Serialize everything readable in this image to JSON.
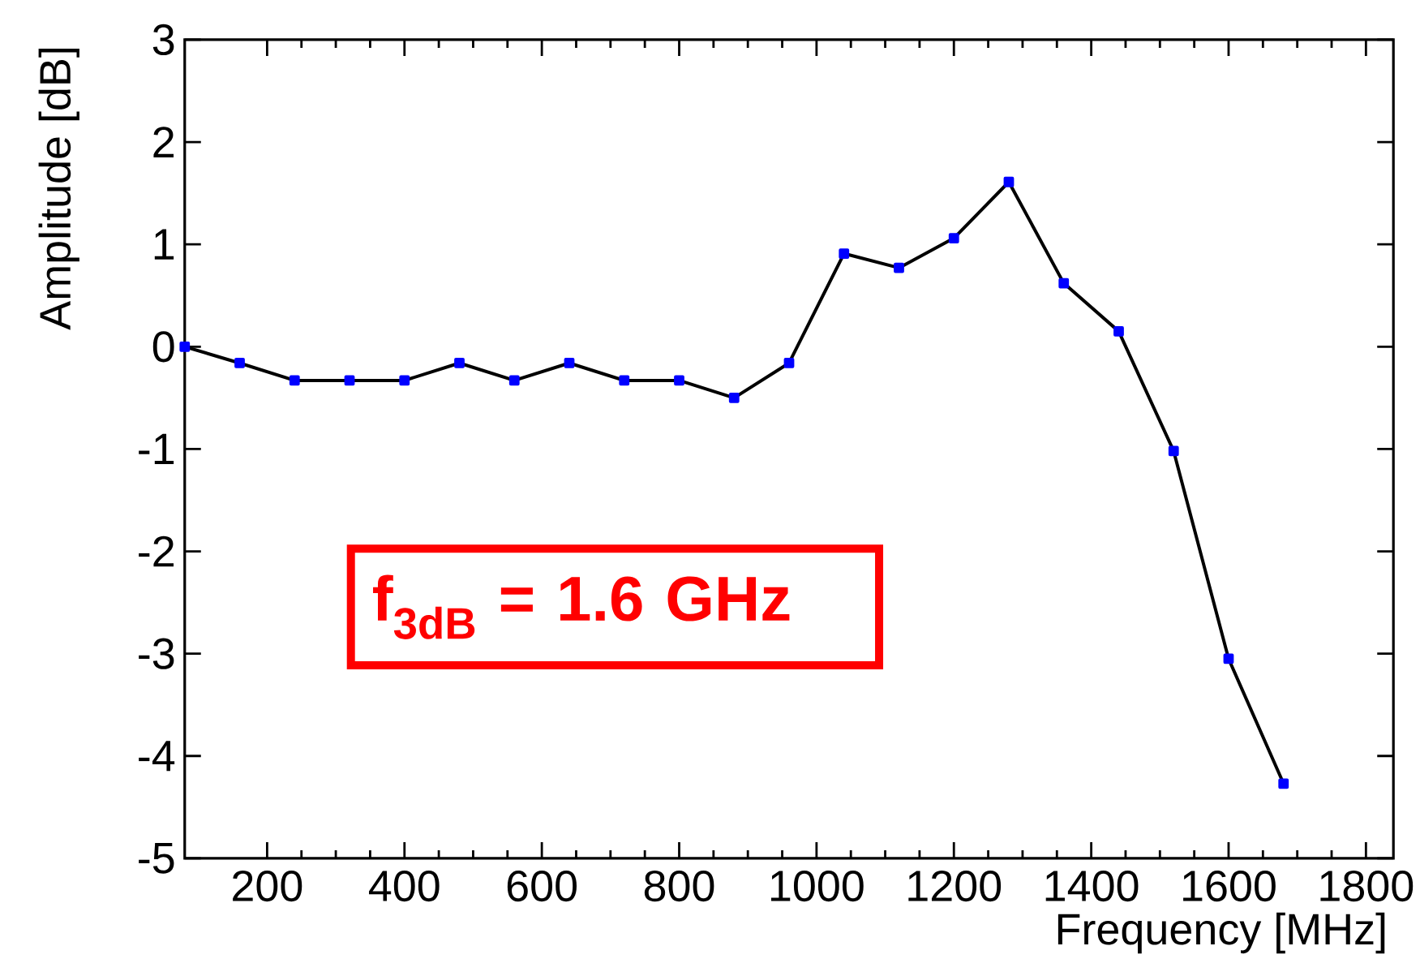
{
  "chart_data": {
    "type": "line",
    "xlabel": "Frequency [MHz]",
    "ylabel": "Amplitude [dB]",
    "x": [
      80,
      160,
      240,
      320,
      400,
      480,
      560,
      640,
      720,
      800,
      880,
      960,
      1040,
      1120,
      1200,
      1280,
      1360,
      1440,
      1520,
      1600,
      1680
    ],
    "series": [
      {
        "color": "#000000",
        "values": [
          0,
          -0.16,
          -0.33,
          -0.33,
          -0.33,
          -0.16,
          -0.33,
          -0.16,
          -0.33,
          -0.33,
          -0.5,
          -0.16,
          0.91,
          0.77,
          1.06,
          1.61,
          0.62,
          0.15,
          -1.02,
          -3.05,
          -4.27
        ]
      }
    ],
    "xlim": [
      80,
      1840
    ],
    "ylim": [
      -5,
      3
    ],
    "xticks": [
      200,
      400,
      600,
      800,
      1000,
      1200,
      1400,
      1600,
      1800
    ],
    "yticks": [
      -5,
      -4,
      -3,
      -2,
      -1,
      0,
      1,
      2,
      3
    ],
    "marker": "square",
    "line_style": "solid",
    "annotations": [
      "f$_{3dB}$ = 1.6 GHz"
    ]
  }
}
